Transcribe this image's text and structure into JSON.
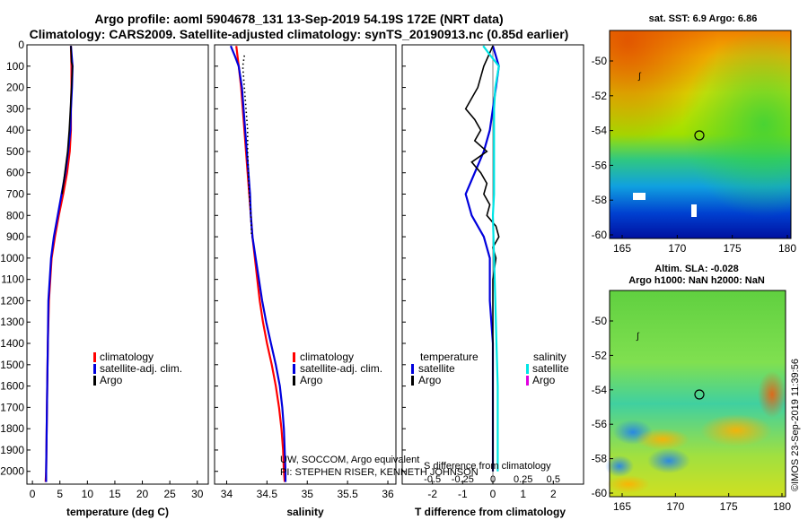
{
  "title": {
    "line1": "Argo profile: aoml 5904678_131 13-Sep-2019 54.19S 172E (NRT data)",
    "line2": "Climatology: CARS2009. Satellite-adjusted climatology: synTS_20190913.nc (0.85d earlier)"
  },
  "colors": {
    "climatology": "#ff0000",
    "satellite": "#0000dd",
    "argo": "#000000",
    "satellite_salinity": "#00e5e5",
    "argo_salinity": "#e000e0"
  },
  "chart_data": [
    {
      "type": "line",
      "panel": "temperature",
      "xlabel": "temperature (deg C)",
      "xlim": [
        -1,
        32
      ],
      "ylim": [
        2060,
        0
      ],
      "x_ticks": [
        0,
        5,
        10,
        15,
        20,
        25,
        30
      ],
      "y_ticks": [
        0,
        100,
        200,
        300,
        400,
        500,
        600,
        700,
        800,
        900,
        1000,
        1100,
        1200,
        1300,
        1400,
        1500,
        1600,
        1700,
        1800,
        1900,
        2000
      ],
      "series": [
        {
          "name": "climatology",
          "depth": [
            5,
            100,
            200,
            300,
            400,
            500,
            600,
            700,
            800,
            900,
            1000,
            1200,
            1400,
            1600,
            1800,
            2000,
            2050
          ],
          "values": [
            7.0,
            7.1,
            7.1,
            7.0,
            7.0,
            6.8,
            6.3,
            5.6,
            4.8,
            4.1,
            3.5,
            3.0,
            2.8,
            2.7,
            2.6,
            2.5,
            2.4
          ]
        },
        {
          "name": "satellite-adj. clim.",
          "depth": [
            5,
            100,
            200,
            300,
            400,
            500,
            600,
            700,
            800,
            900,
            1000,
            1200,
            1400,
            1600,
            1800,
            2000,
            2050
          ],
          "values": [
            7.0,
            7.3,
            7.2,
            7.0,
            6.9,
            6.5,
            6.0,
            5.3,
            4.6,
            3.9,
            3.4,
            2.9,
            2.8,
            2.7,
            2.6,
            2.5,
            2.5
          ]
        },
        {
          "name": "Argo",
          "depth": [
            5,
            80,
            100,
            150,
            200,
            250,
            300,
            400,
            500,
            600,
            700
          ],
          "values": [
            7.0,
            7.1,
            7.3,
            7.2,
            7.1,
            7.0,
            6.9,
            6.7,
            6.4,
            5.9,
            5.4
          ]
        }
      ]
    },
    {
      "type": "line",
      "panel": "salinity",
      "xlabel": "salinity",
      "xlim": [
        33.85,
        36.1
      ],
      "ylim": [
        2060,
        0
      ],
      "x_ticks": [
        34,
        34.5,
        35,
        35.5,
        36
      ],
      "series": [
        {
          "name": "climatology",
          "depth": [
            5,
            100,
            200,
            300,
            400,
            500,
            600,
            700,
            800,
            900,
            1000,
            1100,
            1200,
            1300,
            1400,
            1500,
            1600,
            1700,
            1800,
            1900,
            2000,
            2050
          ],
          "values": [
            34.12,
            34.15,
            34.18,
            34.2,
            34.22,
            34.24,
            34.26,
            34.28,
            34.3,
            34.32,
            34.35,
            34.38,
            34.41,
            34.45,
            34.5,
            34.56,
            34.61,
            34.65,
            34.68,
            34.7,
            34.71,
            34.72
          ]
        },
        {
          "name": "satellite-adj. clim.",
          "depth": [
            5,
            50,
            100,
            200,
            300,
            400,
            500,
            600,
            700,
            800,
            900,
            1000,
            1100,
            1200,
            1300,
            1400,
            1500,
            1600,
            1700,
            1800,
            1900,
            2000,
            2050
          ],
          "values": [
            34.05,
            34.1,
            34.15,
            34.19,
            34.21,
            34.23,
            34.25,
            34.27,
            34.29,
            34.3,
            34.32,
            34.36,
            34.4,
            34.44,
            34.49,
            34.55,
            34.61,
            34.66,
            34.69,
            34.71,
            34.72,
            34.73,
            34.73
          ]
        },
        {
          "name": "Argo",
          "depth": [
            50,
            100,
            200,
            300,
            400,
            500,
            600,
            700,
            800,
            900
          ],
          "values": [
            34.22,
            34.2,
            34.22,
            34.24,
            34.26,
            34.26,
            34.27,
            34.28,
            34.3,
            34.31
          ]
        }
      ]
    },
    {
      "type": "line",
      "panel": "difference",
      "xlabel": "T difference from climatology",
      "xlim": [
        -3,
        3
      ],
      "ylim": [
        2060,
        0
      ],
      "x_ticks": [
        -2,
        -1,
        0,
        1,
        2
      ],
      "s_ticks_label": "S difference from climatology",
      "s_ticks": [
        "-0.5",
        "-0.25",
        "0",
        "0.25",
        "0.5"
      ],
      "legend_temperature_title": "temperature",
      "legend_salinity_title": "salinity",
      "series": [
        {
          "name": "satellite",
          "variable": "temperature",
          "depth": [
            5,
            100,
            200,
            300,
            400,
            500,
            600,
            700,
            800,
            900,
            1000,
            1200,
            1400,
            1600,
            1800,
            2000
          ],
          "values": [
            0.0,
            0.2,
            0.1,
            0.0,
            -0.1,
            -0.3,
            -0.6,
            -0.9,
            -0.7,
            -0.3,
            -0.1,
            -0.1,
            0.0,
            0.0,
            0.0,
            0.0
          ]
        },
        {
          "name": "Argo",
          "variable": "temperature",
          "depth": [
            5,
            100,
            200,
            300,
            350,
            400,
            450,
            500,
            550,
            600,
            650,
            700,
            750,
            800,
            850,
            900,
            950,
            1000,
            1100,
            1200,
            1400,
            1600,
            1800,
            2000
          ],
          "values": [
            0.0,
            -0.3,
            -0.5,
            -0.9,
            -0.6,
            -0.4,
            -0.6,
            -0.2,
            -0.7,
            -0.4,
            -0.2,
            -0.3,
            -0.1,
            -0.2,
            0.1,
            0.2,
            0.0,
            0.1,
            0.0,
            0.0,
            0.0,
            0.0,
            0.0,
            0.0
          ]
        },
        {
          "name": "satellite",
          "variable": "salinity",
          "depth": [
            5,
            50,
            100,
            200,
            300,
            400,
            500,
            600,
            700,
            800,
            1000,
            1200,
            1400,
            1600,
            1800,
            2000
          ],
          "values": [
            -0.08,
            -0.02,
            0.05,
            0.02,
            0.01,
            0.01,
            0.01,
            0.01,
            0.01,
            0.0,
            0.01,
            0.02,
            0.03,
            0.04,
            0.04,
            0.04
          ]
        }
      ],
      "legend_salinity_argo": "Argo"
    }
  ],
  "legend": {
    "climatology": "climatology",
    "satellite_adj": "satellite-adj. clim.",
    "argo": "Argo",
    "satellite": "satellite"
  },
  "credit": {
    "line1": "UW, SOCCOM, Argo equivalent",
    "line2": "PI: STEPHEN RISER, KENNETH JOHNSON"
  },
  "maps": {
    "sst": {
      "title": "sat. SST: 6.9 Argo: 6.86",
      "lon_ticks": [
        "165",
        "170",
        "175",
        "180"
      ],
      "lat_ticks": [
        "-50",
        "-52",
        "-54",
        "-56",
        "-58",
        "-60"
      ]
    },
    "sla": {
      "title1": "Altim. SLA: -0.028",
      "title2": "Argo h1000: NaN h2000: NaN",
      "lon_ticks": [
        "165",
        "170",
        "175",
        "180"
      ],
      "lat_ticks": [
        "-50",
        "-52",
        "-54",
        "-56",
        "-58",
        "-60"
      ]
    },
    "float_lon": 172.0,
    "float_lat": -54.19
  },
  "stamp": "©IMOS 23-Sep-2019 11:39:56"
}
